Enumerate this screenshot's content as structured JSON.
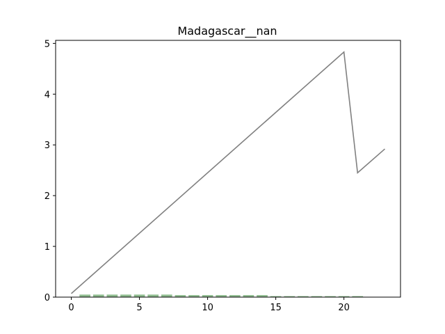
{
  "chart_data": {
    "type": "line",
    "title": "Madagascar__nan",
    "xlabel": "",
    "ylabel": "",
    "xlim": [
      -1.15,
      24.15
    ],
    "ylim": [
      0,
      5.06
    ],
    "x_ticks": [
      0,
      5,
      10,
      15,
      20
    ],
    "y_ticks": [
      0,
      1,
      2,
      3,
      4,
      5
    ],
    "grid": false,
    "legend": "none",
    "line_series": {
      "color": "#808080",
      "x": [
        0,
        20,
        21,
        23
      ],
      "y": [
        0.07,
        4.83,
        2.45,
        2.92
      ]
    },
    "bar_series": {
      "color": "#8fbc8f",
      "x": [
        1,
        2,
        3,
        4,
        5,
        6,
        7,
        8,
        9,
        10,
        11,
        12,
        13,
        14,
        15,
        16,
        17,
        18,
        19,
        20,
        21
      ],
      "values": [
        0.05,
        0.05,
        0.05,
        0.05,
        0.05,
        0.05,
        0.05,
        0.04,
        0.04,
        0.04,
        0.04,
        0.04,
        0.04,
        0.04,
        0.02,
        0.02,
        0.02,
        0.02,
        0.02,
        0.02,
        0.02
      ]
    }
  }
}
